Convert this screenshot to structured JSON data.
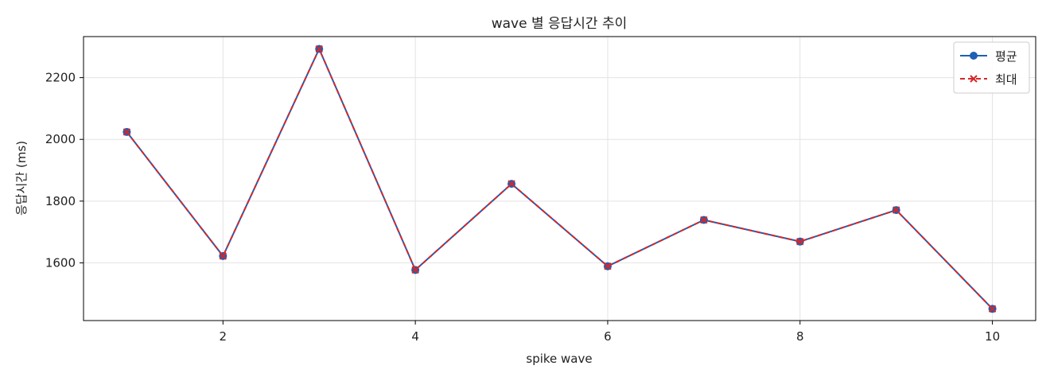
{
  "chart_data": {
    "type": "line",
    "title": "wave 별 응답시간 추이",
    "xlabel": "spike wave",
    "ylabel": "응답시간 (ms)",
    "x": [
      1,
      2,
      3,
      4,
      5,
      6,
      7,
      8,
      9,
      10
    ],
    "xlim": [
      0.55,
      10.45
    ],
    "ylim": [
      1413,
      2333
    ],
    "xticks": [
      2,
      4,
      6,
      8,
      10
    ],
    "yticks": [
      1600,
      1800,
      2000,
      2200
    ],
    "grid": true,
    "legend_position": "top-right",
    "series": [
      {
        "name": "평균",
        "values": [
          2024,
          1622,
          2293,
          1577,
          1856,
          1589,
          1739,
          1669,
          1771,
          1451
        ],
        "color": "#1f5fb4",
        "line_style": "solid",
        "marker": "circle"
      },
      {
        "name": "최대",
        "values": [
          2024,
          1622,
          2293,
          1577,
          1856,
          1589,
          1739,
          1669,
          1771,
          1451
        ],
        "color": "#d62728",
        "line_style": "dashed",
        "marker": "x"
      }
    ]
  }
}
